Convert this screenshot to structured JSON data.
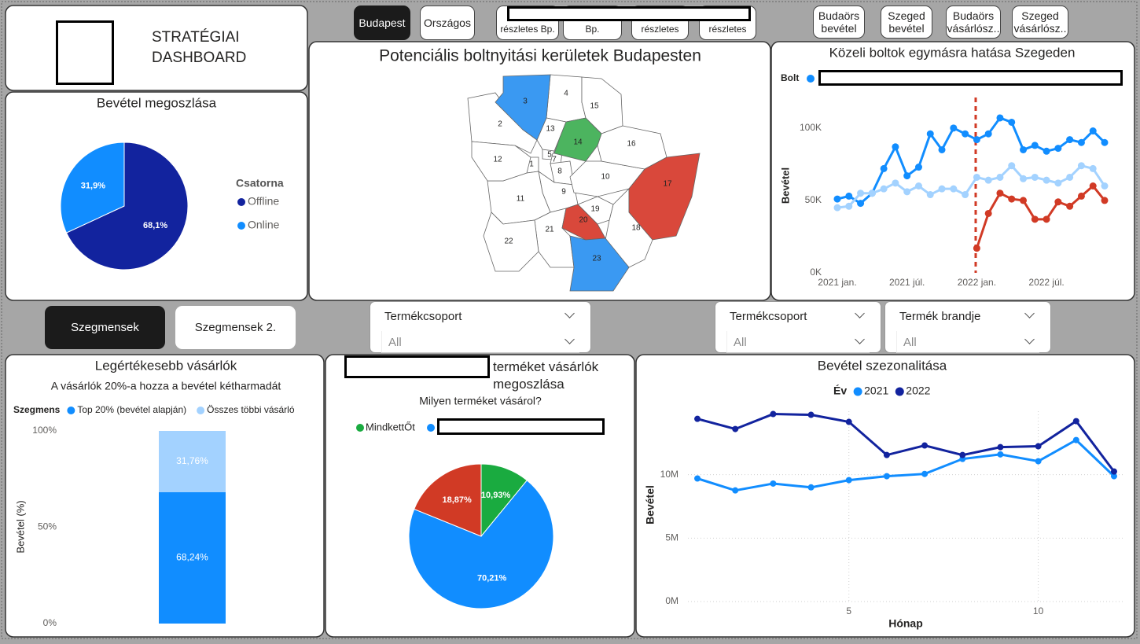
{
  "header": {
    "title": "STRATÉGIAI DASHBOARD"
  },
  "nav_buttons": [
    {
      "label": "Budapest",
      "active": true
    },
    {
      "label": "Országos",
      "active": false
    },
    {
      "label": "részletes Bp.",
      "active": false
    },
    {
      "label": "részletes Bp.",
      "active": false
    },
    {
      "label": "részletes",
      "active": false
    },
    {
      "label": "részletes",
      "active": false
    },
    {
      "label": "Budaörs bevétel",
      "active": false
    },
    {
      "label": "Szeged bevétel",
      "active": false
    },
    {
      "label": "Budaörs vásárlósz..",
      "active": false
    },
    {
      "label": "Szeged vásárlósz..",
      "active": false
    }
  ],
  "segment_buttons": [
    {
      "label": "Szegmensek",
      "active": true
    },
    {
      "label": "Szegmensek 2.",
      "active": false
    }
  ],
  "slicers": [
    {
      "title": "Termékcsoport",
      "value": "All"
    },
    {
      "title": "Termékcsoport",
      "value": "All"
    },
    {
      "title": "Termék brandje",
      "value": "All"
    }
  ],
  "chart_data": [
    {
      "type": "pie",
      "title": "Bevétel megoszlása",
      "legend_title": "Csatorna",
      "categories": [
        "Offline",
        "Online"
      ],
      "values": [
        68.1,
        31.9
      ],
      "value_labels": [
        "68,1%",
        "31,9%"
      ],
      "colors": [
        "#12239e",
        "#118dff"
      ]
    },
    {
      "type": "map",
      "title": "Potenciális boltnyitási kerületek Budapesten",
      "regions": [
        {
          "label": "1",
          "color": "#ffffff"
        },
        {
          "label": "2",
          "color": "#ffffff"
        },
        {
          "label": "3",
          "color": "#3a99f2"
        },
        {
          "label": "4",
          "color": "#ffffff"
        },
        {
          "label": "5",
          "color": "#ffffff"
        },
        {
          "label": "7",
          "color": "#ffffff"
        },
        {
          "label": "8",
          "color": "#ffffff"
        },
        {
          "label": "9",
          "color": "#ffffff"
        },
        {
          "label": "10",
          "color": "#ffffff"
        },
        {
          "label": "11",
          "color": "#ffffff"
        },
        {
          "label": "12",
          "color": "#ffffff"
        },
        {
          "label": "13",
          "color": "#ffffff"
        },
        {
          "label": "14",
          "color": "#4cb45f"
        },
        {
          "label": "15",
          "color": "#ffffff"
        },
        {
          "label": "16",
          "color": "#ffffff"
        },
        {
          "label": "17",
          "color": "#d9483b"
        },
        {
          "label": "18",
          "color": "#ffffff"
        },
        {
          "label": "19",
          "color": "#ffffff"
        },
        {
          "label": "20",
          "color": "#d9483b"
        },
        {
          "label": "21",
          "color": "#ffffff"
        },
        {
          "label": "22",
          "color": "#ffffff"
        },
        {
          "label": "23",
          "color": "#3a99f2"
        }
      ]
    },
    {
      "type": "line",
      "title": "Közeli boltok egymásra hatása Szegeden",
      "legend_title": "Bolt",
      "y_label": "Bevétel",
      "categories": [
        "2021 jan.",
        null,
        null,
        null,
        null,
        null,
        "2021 júl.",
        null,
        null,
        null,
        null,
        null,
        "2022 jan.",
        null,
        null,
        null,
        null,
        null,
        "2022 júl.",
        null,
        null,
        null,
        null,
        null
      ],
      "series": [
        {
          "color": "#118dff",
          "values": [
            51,
            53,
            48,
            55,
            72,
            87,
            67,
            73,
            96,
            85,
            100,
            96,
            92,
            96,
            107,
            104,
            85,
            88,
            84,
            86,
            92,
            90,
            98,
            90
          ]
        },
        {
          "color": "#a3d2ff",
          "values": [
            45,
            46,
            55,
            55,
            58,
            62,
            56,
            60,
            54,
            58,
            58,
            54,
            66,
            64,
            66,
            74,
            65,
            66,
            64,
            62,
            66,
            74,
            72,
            60
          ]
        },
        {
          "color": "#d13a25",
          "values": [
            null,
            null,
            null,
            null,
            null,
            null,
            null,
            null,
            null,
            null,
            null,
            null,
            17,
            41,
            55,
            51,
            50,
            37,
            37,
            49,
            46,
            53,
            60,
            50
          ]
        }
      ],
      "ylim": [
        0,
        120
      ],
      "yticks": [
        {
          "value": 0,
          "label": "0K"
        },
        {
          "value": 50,
          "label": "50K"
        },
        {
          "value": 100,
          "label": "100K"
        }
      ],
      "grid": false
    },
    {
      "type": "stacked_bar",
      "title": "Legértékesebb vásárlók",
      "subtitle": "A vásárlók 20%-a hozza a bevétel kétharmadát",
      "legend_title": "Szegmens",
      "y_label": "Bevétel (%)",
      "categories": [
        null
      ],
      "series": [
        {
          "name": "Top 20% (bevétel alapján)",
          "color": "#118dff",
          "values": [
            68.24
          ],
          "value_labels": [
            "68,24%"
          ]
        },
        {
          "name": "Összes többi vásárló",
          "color": "#a3d2ff",
          "values": [
            31.76
          ],
          "value_labels": [
            "31,76%"
          ]
        }
      ],
      "ylim": [
        0,
        100
      ],
      "yticks": [
        {
          "value": 0,
          "label": "0%"
        },
        {
          "value": 50,
          "label": "50%"
        },
        {
          "value": 100,
          "label": "100%"
        }
      ]
    },
    {
      "type": "pie",
      "title": "terméket vásárlók megoszlása",
      "subtitle": "Milyen terméket vásárol?",
      "categories": [
        "MindkettŐt",
        null,
        null
      ],
      "values": [
        10.93,
        70.21,
        18.87
      ],
      "value_labels": [
        "10,93%",
        "70,21%",
        "18,87%"
      ],
      "colors": [
        "#1aab40",
        "#118dff",
        "#d13a25"
      ]
    },
    {
      "type": "line",
      "title": "Bevétel szezonalitása",
      "legend_title": "Év",
      "x_label": "Hónap",
      "y_label": "Bevétel",
      "x": [
        1,
        2,
        3,
        4,
        5,
        6,
        7,
        8,
        9,
        10,
        11,
        12
      ],
      "series": [
        {
          "name": "2021",
          "color": "#118dff",
          "values": [
            9.7,
            8.76,
            9.3,
            9.0,
            9.57,
            9.88,
            10.06,
            11.24,
            11.6,
            11.06,
            12.73,
            9.88
          ]
        },
        {
          "name": "2022",
          "color": "#12239e",
          "values": [
            14.4,
            13.6,
            14.78,
            14.72,
            14.16,
            11.55,
            12.3,
            11.55,
            12.17,
            12.24,
            14.22,
            10.25
          ]
        }
      ],
      "xlim": [
        0.75,
        12.25
      ],
      "xticks": [
        5,
        10
      ],
      "ylim": [
        0,
        15
      ],
      "yticks": [
        {
          "value": 0,
          "label": "0M"
        },
        {
          "value": 5,
          "label": "5M"
        },
        {
          "value": 10,
          "label": "10M"
        }
      ],
      "grid": true
    }
  ]
}
